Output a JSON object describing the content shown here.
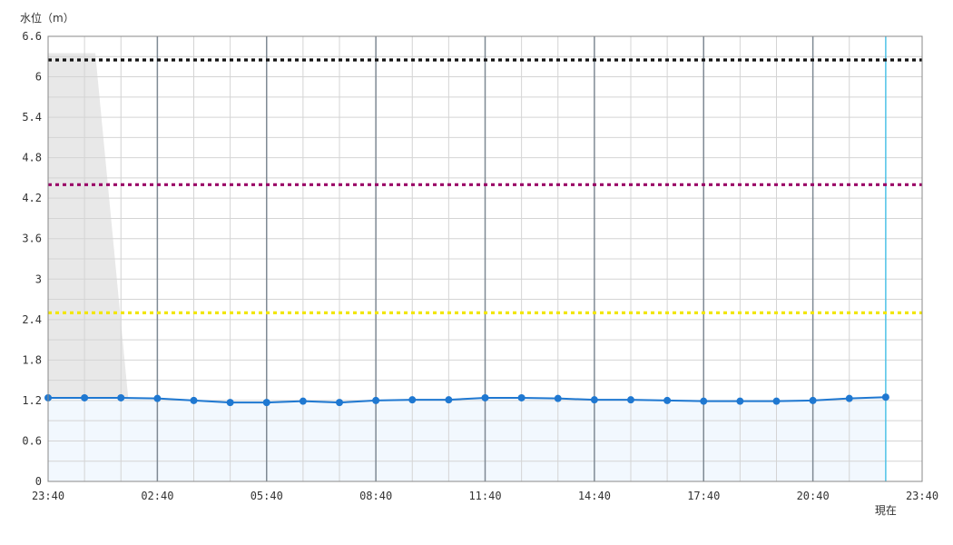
{
  "chart_data": {
    "type": "line",
    "ylabel": "水位（m）",
    "ylim": [
      0,
      6.6
    ],
    "y_ticks": [
      "0",
      "0.6",
      "1.2",
      "1.8",
      "2.4",
      "3",
      "3.6",
      "4.2",
      "4.8",
      "5.4",
      "6",
      "6.6"
    ],
    "x_ticks": [
      "23:40",
      "02:40",
      "05:40",
      "08:40",
      "11:40",
      "14:40",
      "17:40",
      "20:40",
      "23:40"
    ],
    "now_label": "現在",
    "now_index": 23,
    "grid": true,
    "series": [
      {
        "values": [
          1.24,
          1.24,
          1.24,
          1.23,
          1.2,
          1.17,
          1.17,
          1.19,
          1.17,
          1.2,
          1.21,
          1.21,
          1.24,
          1.24,
          1.23,
          1.21,
          1.21,
          1.2,
          1.19,
          1.19,
          1.19,
          1.2,
          1.23,
          1.25
        ],
        "color": "#1f78d1"
      }
    ],
    "thresholds": [
      {
        "value": 6.25,
        "color": "#111111"
      },
      {
        "value": 4.4,
        "color": "#990066"
      },
      {
        "value": 2.5,
        "color": "#f2e600"
      }
    ],
    "colors": {
      "grid_minor": "#d4d4d4",
      "grid_major": "#7f8a94",
      "now_line": "#4fc3e8",
      "area_fill": "#f2f8fe",
      "missing_region": "#e8e8e8",
      "axis": "#888888"
    }
  }
}
